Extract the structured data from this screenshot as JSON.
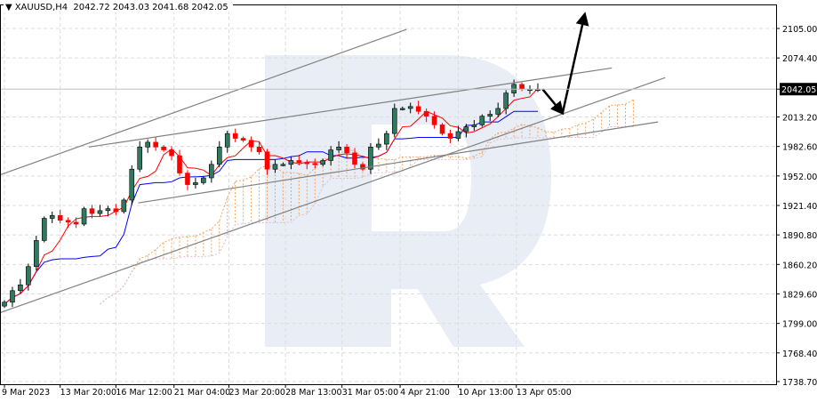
{
  "header": {
    "menu_icon": "triangle-down-icon",
    "symbol": "XAUUSD,H4",
    "open": "2042.72",
    "high": "2043.03",
    "low": "2041.68",
    "close": "2042.05"
  },
  "chart_data": {
    "type": "candlestick",
    "title": "XAUUSD,H4",
    "ylim": [
      1738.7,
      2120
    ],
    "y_ticks": [
      "2105.00",
      "2074.40",
      "2042.05",
      "2013.20",
      "1982.60",
      "1952.00",
      "1921.40",
      "1890.80",
      "1860.20",
      "1829.60",
      "1799.00",
      "1768.40",
      "1738.70"
    ],
    "current_price_label": "2042.05",
    "x_tick_labels": [
      "9 Mar 2023",
      "13 Mar 20:00",
      "16 Mar 12:00",
      "21 Mar 04:00",
      "23 Mar 20:00",
      "28 Mar 13:00",
      "31 Mar 05:00",
      "4 Apr 21:00",
      "10 Apr 13:00",
      "13 Apr 05:00"
    ],
    "x_tick_index": [
      0,
      7,
      14,
      21.3,
      28.2,
      35.3,
      42.4,
      49.7,
      57,
      64.3
    ],
    "grid": true,
    "closes": [
      1821,
      1833,
      1839,
      1858,
      1885,
      1908,
      1911,
      1906,
      1904,
      1902,
      1918,
      1913,
      1916,
      1918,
      1915,
      1927,
      1959,
      1982,
      1987,
      1982,
      1979,
      1973,
      1955,
      1943,
      1945,
      1950,
      1964,
      1982,
      1996,
      1991,
      1989,
      1982,
      1977,
      1959,
      1964,
      1964,
      1968,
      1966,
      1965,
      1964,
      1968,
      1979,
      1982,
      1976,
      1964,
      1959,
      1982,
      1985,
      1996,
      2022,
      2022,
      2024,
      2019,
      2014,
      2005,
      1996,
      1991,
      1998,
      2003,
      2005,
      2014,
      2016,
      2022,
      2038,
      2047,
      2042,
      2042,
      2042.05
    ],
    "colors": {
      "bull": "#2f7a5e",
      "bear": "#ff0000",
      "tenkan": "#ff0000",
      "kijun": "#0000ff",
      "span_a": "#f4a460",
      "span_b": "#d8bfd8",
      "trendline": "#808080",
      "arrow": "#000000",
      "watermark": "#e3e9f2"
    },
    "indicators": [
      "Ichimoku Kinko Hyo (Tenkan-sen, Kijun-sen, Senkou Span A/B cloud)"
    ],
    "trendlines": [
      {
        "name": "upper-channel",
        "from": [
          -0.6,
          1953
        ],
        "to": [
          50.5,
          2104
        ]
      },
      {
        "name": "resistance-line",
        "from": [
          10.6,
          1982
        ],
        "to": [
          76.3,
          2064
        ]
      },
      {
        "name": "support-line",
        "from": [
          -0.6,
          1810
        ],
        "to": [
          83,
          2054
        ]
      },
      {
        "name": "inner-support-line",
        "from": [
          16.8,
          1924
        ],
        "to": [
          82.1,
          2008
        ]
      }
    ],
    "forecast_arrows": [
      {
        "name": "pullback-arrow",
        "from": [
          67.6,
          2042
        ],
        "to": [
          70.1,
          2017
        ]
      },
      {
        "name": "rally-arrow",
        "from": [
          70.1,
          2017
        ],
        "to": [
          72.9,
          2120
        ]
      }
    ]
  }
}
